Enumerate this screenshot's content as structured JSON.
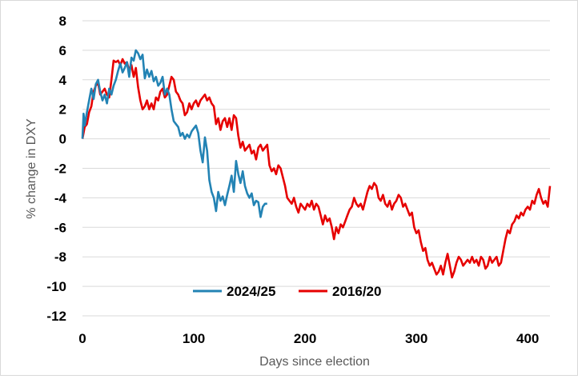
{
  "chart_data": {
    "type": "line",
    "title": "",
    "xlabel": "Days since election",
    "ylabel": "% change in DXY",
    "xlim": [
      0,
      420
    ],
    "ylim": [
      -12,
      8
    ],
    "x_ticks": [
      0,
      100,
      200,
      300,
      400
    ],
    "y_ticks": [
      -12,
      -10,
      -8,
      -6,
      -4,
      -2,
      0,
      2,
      4,
      6,
      8
    ],
    "grid": "horizontal",
    "legend_position": "bottom-center",
    "series": [
      {
        "name": "2024/25",
        "color": "#2383b4",
        "points": [
          [
            0,
            0
          ],
          [
            1,
            1.7
          ],
          [
            2,
            0.9
          ],
          [
            4,
            1.8
          ],
          [
            6,
            2.6
          ],
          [
            8,
            3.4
          ],
          [
            10,
            2.7
          ],
          [
            12,
            3.7
          ],
          [
            14,
            4.0
          ],
          [
            16,
            3.2
          ],
          [
            18,
            2.6
          ],
          [
            20,
            3.0
          ],
          [
            22,
            2.4
          ],
          [
            24,
            3.4
          ],
          [
            26,
            3.0
          ],
          [
            28,
            3.6
          ],
          [
            30,
            4.0
          ],
          [
            32,
            4.6
          ],
          [
            34,
            5.1
          ],
          [
            36,
            4.5
          ],
          [
            38,
            4.8
          ],
          [
            40,
            5.2
          ],
          [
            42,
            4.2
          ],
          [
            44,
            5.5
          ],
          [
            46,
            5.3
          ],
          [
            48,
            6.0
          ],
          [
            50,
            5.8
          ],
          [
            52,
            5.4
          ],
          [
            54,
            5.7
          ],
          [
            56,
            4.1
          ],
          [
            58,
            4.7
          ],
          [
            60,
            4.2
          ],
          [
            62,
            4.6
          ],
          [
            64,
            3.9
          ],
          [
            66,
            4.2
          ],
          [
            68,
            3.6
          ],
          [
            70,
            3.8
          ],
          [
            72,
            4.2
          ],
          [
            74,
            3.0
          ],
          [
            76,
            3.4
          ],
          [
            78,
            3.0
          ],
          [
            80,
            2.0
          ],
          [
            82,
            1.2
          ],
          [
            84,
            1.0
          ],
          [
            86,
            0.8
          ],
          [
            88,
            0.2
          ],
          [
            90,
            0.4
          ],
          [
            92,
            0.0
          ],
          [
            94,
            0.3
          ],
          [
            96,
            0.1
          ],
          [
            98,
            0.5
          ],
          [
            100,
            0.7
          ],
          [
            102,
            0.9
          ],
          [
            104,
            0.4
          ],
          [
            106,
            -0.8
          ],
          [
            108,
            -1.6
          ],
          [
            110,
            0.1
          ],
          [
            112,
            -0.8
          ],
          [
            114,
            -2.8
          ],
          [
            116,
            -3.6
          ],
          [
            118,
            -4.0
          ],
          [
            120,
            -4.9
          ],
          [
            122,
            -3.6
          ],
          [
            124,
            -4.2
          ],
          [
            126,
            -3.9
          ],
          [
            128,
            -4.5
          ],
          [
            130,
            -3.8
          ],
          [
            132,
            -3.2
          ],
          [
            134,
            -2.5
          ],
          [
            136,
            -3.6
          ],
          [
            138,
            -1.5
          ],
          [
            140,
            -2.4
          ],
          [
            142,
            -3.0
          ],
          [
            144,
            -2.2
          ],
          [
            146,
            -3.2
          ],
          [
            148,
            -3.7
          ],
          [
            150,
            -4.0
          ],
          [
            152,
            -3.7
          ],
          [
            154,
            -4.5
          ],
          [
            156,
            -4.2
          ],
          [
            158,
            -4.3
          ],
          [
            160,
            -5.3
          ],
          [
            162,
            -4.6
          ],
          [
            164,
            -4.4
          ],
          [
            166,
            -4.4
          ]
        ]
      },
      {
        "name": "2016/20",
        "color": "#e60000",
        "points": [
          [
            0,
            0
          ],
          [
            2,
            0.8
          ],
          [
            4,
            1.0
          ],
          [
            6,
            1.8
          ],
          [
            8,
            2.2
          ],
          [
            10,
            3.2
          ],
          [
            12,
            3.6
          ],
          [
            14,
            3.8
          ],
          [
            16,
            3.0
          ],
          [
            18,
            3.2
          ],
          [
            20,
            3.4
          ],
          [
            22,
            3.0
          ],
          [
            24,
            2.8
          ],
          [
            26,
            4.0
          ],
          [
            28,
            5.3
          ],
          [
            30,
            5.2
          ],
          [
            32,
            5.3
          ],
          [
            34,
            5.0
          ],
          [
            36,
            5.4
          ],
          [
            38,
            5.1
          ],
          [
            40,
            5.2
          ],
          [
            42,
            4.6
          ],
          [
            44,
            5.0
          ],
          [
            46,
            4.2
          ],
          [
            48,
            4.8
          ],
          [
            50,
            3.5
          ],
          [
            52,
            2.6
          ],
          [
            54,
            2.0
          ],
          [
            56,
            2.2
          ],
          [
            58,
            2.6
          ],
          [
            60,
            2.0
          ],
          [
            62,
            2.4
          ],
          [
            64,
            2.0
          ],
          [
            66,
            2.8
          ],
          [
            68,
            2.6
          ],
          [
            70,
            3.2
          ],
          [
            72,
            3.4
          ],
          [
            74,
            2.8
          ],
          [
            76,
            3.0
          ],
          [
            78,
            3.6
          ],
          [
            80,
            4.2
          ],
          [
            82,
            4.0
          ],
          [
            84,
            3.2
          ],
          [
            86,
            3.0
          ],
          [
            88,
            2.6
          ],
          [
            90,
            2.4
          ],
          [
            92,
            1.6
          ],
          [
            94,
            1.8
          ],
          [
            96,
            2.4
          ],
          [
            98,
            2.0
          ],
          [
            100,
            2.4
          ],
          [
            102,
            2.6
          ],
          [
            104,
            2.2
          ],
          [
            106,
            2.6
          ],
          [
            108,
            2.8
          ],
          [
            110,
            3.0
          ],
          [
            112,
            2.6
          ],
          [
            114,
            2.8
          ],
          [
            116,
            2.4
          ],
          [
            118,
            2.2
          ],
          [
            120,
            1.0
          ],
          [
            122,
            1.4
          ],
          [
            124,
            0.6
          ],
          [
            126,
            1.2
          ],
          [
            128,
            1.4
          ],
          [
            130,
            0.8
          ],
          [
            132,
            1.4
          ],
          [
            134,
            0.6
          ],
          [
            136,
            1.6
          ],
          [
            138,
            1.4
          ],
          [
            140,
            0.2
          ],
          [
            142,
            -0.6
          ],
          [
            144,
            -0.2
          ],
          [
            146,
            -0.8
          ],
          [
            148,
            -0.6
          ],
          [
            150,
            -0.4
          ],
          [
            152,
            -1.0
          ],
          [
            154,
            -0.8
          ],
          [
            156,
            -1.4
          ],
          [
            158,
            -0.6
          ],
          [
            160,
            -0.4
          ],
          [
            162,
            -0.8
          ],
          [
            164,
            -0.6
          ],
          [
            166,
            -0.4
          ],
          [
            168,
            -1.8
          ],
          [
            170,
            -2.2
          ],
          [
            172,
            -2.0
          ],
          [
            174,
            -2.4
          ],
          [
            176,
            -1.8
          ],
          [
            178,
            -2.0
          ],
          [
            180,
            -2.6
          ],
          [
            182,
            -3.2
          ],
          [
            184,
            -4.0
          ],
          [
            186,
            -4.2
          ],
          [
            188,
            -4.4
          ],
          [
            190,
            -4.0
          ],
          [
            192,
            -4.6
          ],
          [
            194,
            -5.0
          ],
          [
            196,
            -4.4
          ],
          [
            198,
            -4.6
          ],
          [
            200,
            -4.8
          ],
          [
            202,
            -4.4
          ],
          [
            204,
            -4.6
          ],
          [
            206,
            -4.2
          ],
          [
            208,
            -4.8
          ],
          [
            210,
            -4.4
          ],
          [
            212,
            -4.6
          ],
          [
            214,
            -5.2
          ],
          [
            216,
            -5.8
          ],
          [
            218,
            -5.2
          ],
          [
            220,
            -5.6
          ],
          [
            222,
            -5.4
          ],
          [
            224,
            -6.0
          ],
          [
            226,
            -6.8
          ],
          [
            228,
            -6.0
          ],
          [
            230,
            -6.4
          ],
          [
            232,
            -5.8
          ],
          [
            234,
            -6.0
          ],
          [
            236,
            -5.6
          ],
          [
            238,
            -5.2
          ],
          [
            240,
            -4.8
          ],
          [
            242,
            -4.6
          ],
          [
            244,
            -4.0
          ],
          [
            246,
            -4.4
          ],
          [
            248,
            -4.6
          ],
          [
            250,
            -4.4
          ],
          [
            252,
            -4.8
          ],
          [
            254,
            -4.2
          ],
          [
            256,
            -3.6
          ],
          [
            258,
            -3.2
          ],
          [
            260,
            -3.4
          ],
          [
            262,
            -3.0
          ],
          [
            264,
            -3.2
          ],
          [
            266,
            -4.0
          ],
          [
            268,
            -4.2
          ],
          [
            270,
            -3.8
          ],
          [
            272,
            -4.4
          ],
          [
            274,
            -4.6
          ],
          [
            276,
            -4.2
          ],
          [
            278,
            -4.8
          ],
          [
            280,
            -4.4
          ],
          [
            282,
            -4.2
          ],
          [
            284,
            -3.8
          ],
          [
            286,
            -4.0
          ],
          [
            288,
            -4.6
          ],
          [
            290,
            -4.4
          ],
          [
            292,
            -4.8
          ],
          [
            294,
            -5.2
          ],
          [
            296,
            -5.0
          ],
          [
            298,
            -6.0
          ],
          [
            300,
            -6.4
          ],
          [
            302,
            -6.2
          ],
          [
            304,
            -7.0
          ],
          [
            306,
            -7.6
          ],
          [
            308,
            -7.4
          ],
          [
            310,
            -8.2
          ],
          [
            312,
            -8.6
          ],
          [
            314,
            -8.4
          ],
          [
            316,
            -8.8
          ],
          [
            318,
            -9.2
          ],
          [
            320,
            -9.0
          ],
          [
            322,
            -8.6
          ],
          [
            324,
            -9.2
          ],
          [
            326,
            -8.4
          ],
          [
            328,
            -7.8
          ],
          [
            330,
            -8.6
          ],
          [
            332,
            -9.4
          ],
          [
            334,
            -9.0
          ],
          [
            336,
            -8.4
          ],
          [
            338,
            -8.0
          ],
          [
            340,
            -8.2
          ],
          [
            342,
            -8.6
          ],
          [
            344,
            -8.4
          ],
          [
            346,
            -8.2
          ],
          [
            348,
            -8.4
          ],
          [
            350,
            -8.0
          ],
          [
            352,
            -8.4
          ],
          [
            354,
            -8.2
          ],
          [
            356,
            -8.6
          ],
          [
            358,
            -8.0
          ],
          [
            360,
            -8.2
          ],
          [
            362,
            -8.8
          ],
          [
            364,
            -8.6
          ],
          [
            366,
            -8.0
          ],
          [
            368,
            -8.4
          ],
          [
            370,
            -8.2
          ],
          [
            372,
            -8.0
          ],
          [
            374,
            -8.6
          ],
          [
            376,
            -8.4
          ],
          [
            378,
            -7.6
          ],
          [
            380,
            -6.8
          ],
          [
            382,
            -6.2
          ],
          [
            384,
            -6.4
          ],
          [
            386,
            -5.8
          ],
          [
            388,
            -5.6
          ],
          [
            390,
            -5.2
          ],
          [
            392,
            -5.4
          ],
          [
            394,
            -5.0
          ],
          [
            396,
            -5.2
          ],
          [
            398,
            -4.8
          ],
          [
            400,
            -4.6
          ],
          [
            402,
            -4.8
          ],
          [
            404,
            -4.2
          ],
          [
            406,
            -4.4
          ],
          [
            408,
            -3.8
          ],
          [
            410,
            -3.4
          ],
          [
            412,
            -4.0
          ],
          [
            414,
            -4.4
          ],
          [
            416,
            -4.2
          ],
          [
            418,
            -4.6
          ],
          [
            420,
            -3.2
          ]
        ]
      }
    ]
  }
}
